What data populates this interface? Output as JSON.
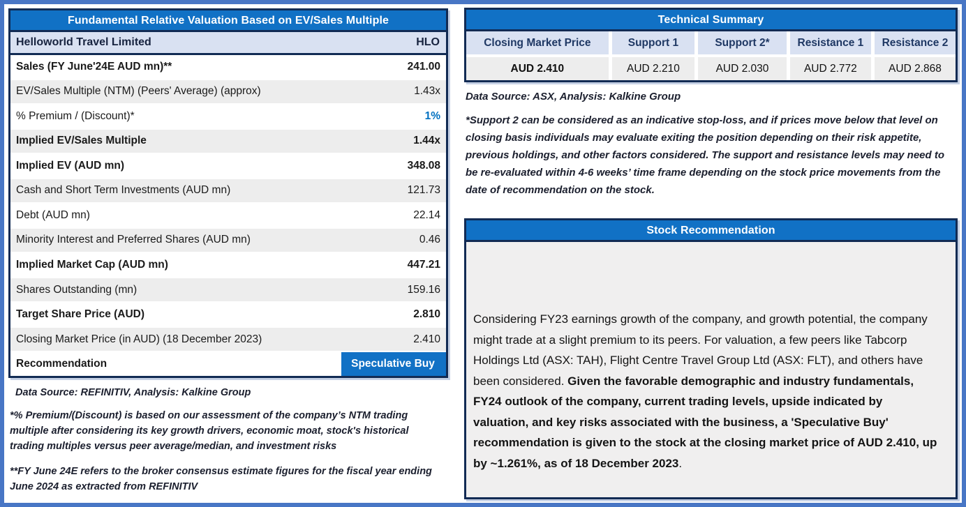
{
  "colors": {
    "frame_blue": "#4876c5",
    "header_blue": "#1171c5",
    "border_navy": "#122b54",
    "lavender_fill": "#d9e1f2",
    "gray_row": "#ededed",
    "rec_body_gray": "#f0efef",
    "premium_value_blue": "#0070c0",
    "header_text_navy": "#1f3864"
  },
  "valuation_table": {
    "title": "Fundamental Relative Valuation Based on EV/Sales Multiple",
    "company_name": "Helloworld Travel Limited",
    "ticker": "HLO",
    "rows": [
      {
        "label": "Sales (FY June'24E AUD mn)**",
        "value": "241.00",
        "bold": true
      },
      {
        "label": "EV/Sales Multiple (NTM)  (Peers' Average) (approx)",
        "value": "1.43x"
      },
      {
        "label": "% Premium / (Discount)*",
        "value": "1%",
        "value_color": "blue"
      },
      {
        "label": "Implied EV/Sales Multiple",
        "value": "1.44x",
        "bold": true
      },
      {
        "label": "Implied EV (AUD mn)",
        "value": "348.08",
        "bold": true
      },
      {
        "label": "Cash and Short Term Investments (AUD mn)",
        "value": "121.73"
      },
      {
        "label": "Debt (AUD mn)",
        "value": "22.14"
      },
      {
        "label": "Minority Interest and Preferred Shares (AUD mn)",
        "value": "0.46"
      },
      {
        "label": "Implied Market Cap (AUD mn)",
        "value": "447.21",
        "bold": true
      },
      {
        "label": "Shares Outstanding (mn)",
        "value": "159.16"
      },
      {
        "label": "Target Share Price (AUD)",
        "value": "2.810",
        "bold": true
      },
      {
        "label": "Closing Market Price (in AUD) (18 December 2023)",
        "value": "2.410"
      },
      {
        "label": "Recommendation",
        "value": "Speculative Buy",
        "bold": true,
        "badge": true
      }
    ],
    "source_note": "Data Source: REFINITIV, Analysis: Kalkine Group",
    "footnote1": "*% Premium/(Discount) is based on our assessment of the company’s NTM trading multiple after considering its key growth drivers, economic moat, stock's historical trading multiples versus peer average/median, and investment risks",
    "footnote2": "**FY June 24E refers to the broker consensus estimate figures for the fiscal year ending June 2024  as extracted from REFINITIV"
  },
  "technical_summary": {
    "title": "Technical Summary",
    "columns": [
      "Closing Market Price",
      "Support 1",
      "Support 2*",
      "Resistance 1",
      "Resistance 2"
    ],
    "values": [
      "AUD 2.410",
      "AUD 2.210",
      "AUD 2.030",
      "AUD 2.772",
      "AUD 2.868"
    ],
    "source_note": "Data Source: ASX, Analysis: Kalkine Group",
    "footnote": "*Support 2 can be considered as an indicative stop-loss, and if prices move below that level on closing basis individuals may evaluate exiting the position depending on their risk appetite, previous holdings, and other factors considered. The support and resistance levels may need to be re-evaluated within 4-6 weeks’ time frame depending on the stock price movements from the date of recommendation on the stock."
  },
  "stock_recommendation": {
    "title": "Stock Recommendation",
    "body_normal": "Considering FY23 earnings growth of the company, and growth potential, the company might trade at a slight premium to its peers. For valuation, a few peers like Tabcorp Holdings Ltd (ASX: TAH), Flight Centre Travel Group Ltd (ASX: FLT), and others have been considered. ",
    "body_bold": "Given the favorable demographic and industry fundamentals, FY24 outlook of the company, current trading levels, upside indicated by valuation, and key risks associated with the business, a 'Speculative Buy' recommendation is given to the stock at the closing market price of AUD 2.410, up by ~1.261%, as of 18 December 2023",
    "body_end": "."
  }
}
